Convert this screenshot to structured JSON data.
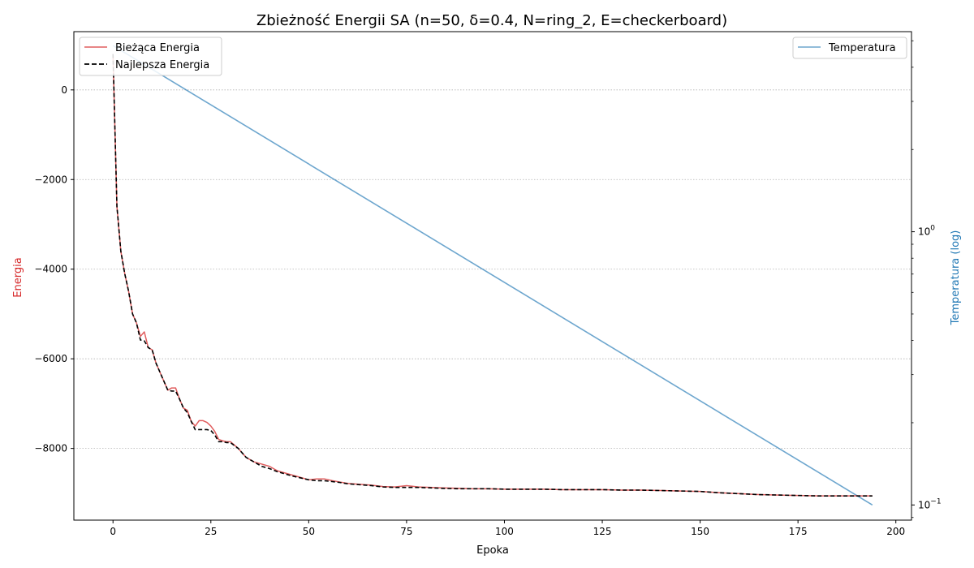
{
  "chart_data": {
    "type": "line",
    "title": "Zbieżność Energii SA (n=50, δ=0.4, N=ring_2, E=checkerboard)",
    "xlabel": "Epoka",
    "ylabel": "Energia",
    "ylabel_right": "Temperatura (log)",
    "xlim": [
      -10,
      204
    ],
    "ylim": [
      -9600,
      1300
    ],
    "y2_scale": "log",
    "y2lim": [
      0.088,
      5.4
    ],
    "x_ticks": [
      0,
      25,
      50,
      75,
      100,
      125,
      150,
      175,
      200
    ],
    "x_tick_labels": [
      "0",
      "25",
      "50",
      "75",
      "100",
      "125",
      "150",
      "175",
      "200"
    ],
    "y_ticks": [
      0,
      -2000,
      -4000,
      -6000,
      -8000
    ],
    "y_tick_labels": [
      "0",
      "−2000",
      "−4000",
      "−6000",
      "−8000"
    ],
    "y2_ticks": [
      1,
      0.1
    ],
    "y2_tick_base": "10",
    "y2_tick_exponents": [
      "0",
      "−1"
    ],
    "grid": "horizontal-dotted",
    "colors": {
      "current": "#d62728",
      "best": "#000000",
      "temperature": "#1f77b4",
      "left_axis": "#d62728",
      "right_axis": "#1f77b4"
    },
    "legend_left": {
      "position": "upper-left",
      "entries": [
        "Bieżąca Energia",
        "Najlepsza Energia"
      ]
    },
    "legend_right": {
      "position": "upper-right",
      "entries": [
        "Temperatura"
      ]
    },
    "series": [
      {
        "name": "Bieżąca Energia",
        "style": "solid",
        "x": [
          0,
          1,
          2,
          3,
          4,
          5,
          6,
          7,
          8,
          9,
          10,
          11,
          12,
          13,
          14,
          15,
          16,
          17,
          18,
          19,
          20,
          21,
          22,
          23,
          24,
          25,
          26,
          27,
          28,
          29,
          30,
          32,
          34,
          36,
          38,
          40,
          42,
          44,
          46,
          48,
          50,
          52,
          54,
          56,
          58,
          60,
          63,
          66,
          69,
          72,
          75,
          78,
          81,
          84,
          88,
          92,
          96,
          100,
          105,
          110,
          115,
          120,
          125,
          130,
          135,
          140,
          145,
          150,
          155,
          160,
          165,
          170,
          175,
          180,
          185,
          190,
          194
        ],
        "values": [
          800,
          -2600,
          -3600,
          -4100,
          -4500,
          -5000,
          -5200,
          -5500,
          -5400,
          -5750,
          -5800,
          -6100,
          -6300,
          -6500,
          -6700,
          -6650,
          -6650,
          -6900,
          -7100,
          -7150,
          -7400,
          -7500,
          -7380,
          -7380,
          -7420,
          -7500,
          -7620,
          -7800,
          -7830,
          -7850,
          -7850,
          -8000,
          -8200,
          -8300,
          -8350,
          -8400,
          -8500,
          -8550,
          -8600,
          -8650,
          -8700,
          -8680,
          -8680,
          -8720,
          -8750,
          -8780,
          -8800,
          -8820,
          -8850,
          -8860,
          -8830,
          -8860,
          -8870,
          -8880,
          -8890,
          -8900,
          -8900,
          -8910,
          -8910,
          -8910,
          -8920,
          -8920,
          -8920,
          -8930,
          -8930,
          -8940,
          -8950,
          -8960,
          -8990,
          -9010,
          -9030,
          -9040,
          -9050,
          -9060,
          -9060,
          -9060,
          -9060
        ]
      },
      {
        "name": "Najlepsza Energia",
        "style": "dashed",
        "x": [
          0,
          1,
          2,
          3,
          4,
          5,
          6,
          7,
          8,
          9,
          10,
          11,
          12,
          13,
          14,
          15,
          16,
          17,
          18,
          19,
          20,
          21,
          22,
          23,
          24,
          25,
          26,
          27,
          28,
          29,
          30,
          32,
          34,
          36,
          38,
          40,
          42,
          44,
          46,
          48,
          50,
          52,
          54,
          56,
          58,
          60,
          63,
          66,
          69,
          72,
          75,
          78,
          81,
          84,
          88,
          92,
          96,
          100,
          105,
          110,
          115,
          120,
          125,
          130,
          135,
          140,
          145,
          150,
          155,
          160,
          165,
          170,
          175,
          180,
          185,
          190,
          194
        ],
        "values": [
          800,
          -2600,
          -3600,
          -4100,
          -4500,
          -5000,
          -5200,
          -5580,
          -5600,
          -5750,
          -5800,
          -6100,
          -6300,
          -6500,
          -6700,
          -6720,
          -6720,
          -6900,
          -7100,
          -7200,
          -7400,
          -7580,
          -7580,
          -7580,
          -7580,
          -7600,
          -7700,
          -7850,
          -7850,
          -7870,
          -7870,
          -8000,
          -8200,
          -8300,
          -8400,
          -8450,
          -8520,
          -8570,
          -8620,
          -8660,
          -8700,
          -8720,
          -8720,
          -8740,
          -8760,
          -8790,
          -8810,
          -8830,
          -8860,
          -8870,
          -8870,
          -8870,
          -8880,
          -8890,
          -8900,
          -8900,
          -8900,
          -8910,
          -8910,
          -8910,
          -8920,
          -8920,
          -8920,
          -8930,
          -8930,
          -8940,
          -8950,
          -8960,
          -8990,
          -9010,
          -9030,
          -9040,
          -9050,
          -9060,
          -9060,
          -9060,
          -9060
        ]
      },
      {
        "name": "Temperatura",
        "axis": "right",
        "style": "solid",
        "x": [
          0,
          194
        ],
        "values": [
          4.8,
          0.1
        ]
      }
    ]
  }
}
